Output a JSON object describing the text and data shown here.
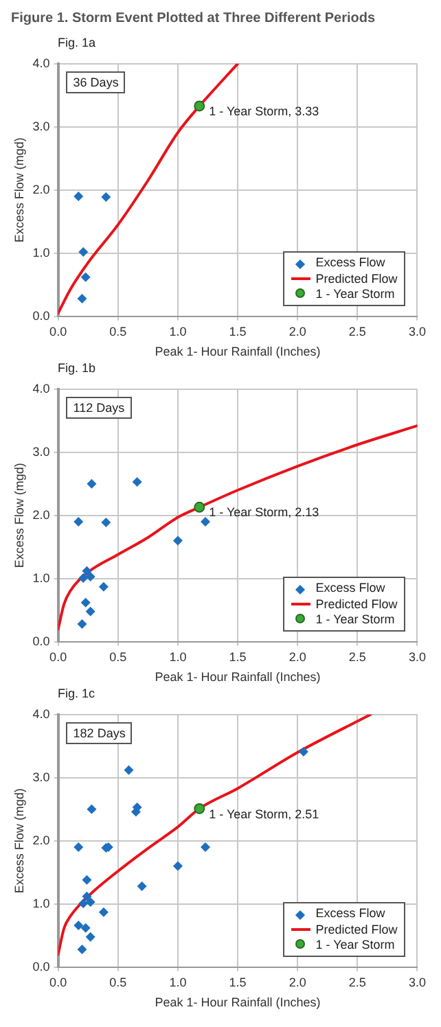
{
  "chart_data": [
    {
      "type": "scatter",
      "title": "Figure 1. Storm Event Plotted at Three Different Periods",
      "subtitle": "Fig. 1a",
      "xlabel": "Peak 1- Hour Rainfall (Inches)",
      "ylabel": "Excess Flow (mgd)",
      "xlim": [
        0,
        3
      ],
      "ylim": [
        0,
        4
      ],
      "xticks": [
        {
          "value": 0,
          "label": "0.0"
        },
        {
          "value": 0.5,
          "label": "0.5"
        },
        {
          "value": 1,
          "label": "1.0"
        },
        {
          "value": 1.5,
          "label": "1.5"
        },
        {
          "value": 2,
          "label": "2.0"
        },
        {
          "value": 2.5,
          "label": "2.5"
        },
        {
          "value": 3,
          "label": "3.0"
        }
      ],
      "yticks": [
        {
          "value": 0,
          "label": "0.0"
        },
        {
          "value": 1,
          "label": "1.0"
        },
        {
          "value": 2,
          "label": "2.0"
        },
        {
          "value": 3,
          "label": "3.0"
        },
        {
          "value": 4,
          "label": "4.0"
        }
      ],
      "grid": true,
      "legend": "bottom right",
      "annotations": [
        "36 Days"
      ],
      "series": [
        {
          "name": "Excess Flow",
          "type": "scatter",
          "marker": "diamond",
          "color": "#1f6fbf",
          "x": [
            0.17,
            0.4,
            0.21,
            0.23,
            0.2
          ],
          "values": [
            1.9,
            1.89,
            1.02,
            0.62,
            0.28
          ]
        },
        {
          "name": "Predicted Flow",
          "type": "line",
          "marker": "none",
          "color": "#e8141b",
          "x": [
            0,
            0.1,
            0.25,
            0.5,
            0.75,
            1,
            1.18,
            1.25,
            1.5
          ],
          "values": [
            0.05,
            0.42,
            0.85,
            1.45,
            2.15,
            2.91,
            3.33,
            3.48,
            4
          ]
        },
        {
          "name": "1 - Year Storm",
          "type": "scatter",
          "marker": "circle",
          "color": "#3aaa35",
          "x": [
            1.18
          ],
          "values": [
            3.33
          ],
          "value_labels": [
            "1 - Year Storm, 3.33"
          ]
        }
      ]
    },
    {
      "type": "scatter",
      "title": "Fig. 1b",
      "xlabel": "Peak 1- Hour Rainfall (Inches)",
      "ylabel": "Excess Flow (mgd)",
      "xlim": [
        0,
        3
      ],
      "ylim": [
        0,
        4
      ],
      "xticks": [
        {
          "value": 0,
          "label": "0.0"
        },
        {
          "value": 0.5,
          "label": "0.5"
        },
        {
          "value": 1,
          "label": "1.0"
        },
        {
          "value": 1.5,
          "label": "1.5"
        },
        {
          "value": 2,
          "label": "2.0"
        },
        {
          "value": 2.5,
          "label": "2.5"
        },
        {
          "value": 3,
          "label": "3.0"
        }
      ],
      "yticks": [
        {
          "value": 0,
          "label": "0.0"
        },
        {
          "value": 1,
          "label": "1.0"
        },
        {
          "value": 2,
          "label": "2.0"
        },
        {
          "value": 3,
          "label": "3.0"
        },
        {
          "value": 4,
          "label": "4.0"
        }
      ],
      "grid": true,
      "legend": "bottom right",
      "annotations": [
        "112 Days"
      ],
      "series": [
        {
          "name": "Excess Flow",
          "type": "scatter",
          "marker": "diamond",
          "color": "#1f6fbf",
          "x": [
            0.17,
            0.28,
            0.66,
            0.4,
            1.0,
            1.23,
            0.24,
            0.21,
            0.27,
            0.38,
            0.23,
            0.27,
            0.2
          ],
          "values": [
            1.9,
            2.5,
            2.53,
            1.89,
            1.6,
            1.9,
            1.12,
            1.01,
            1.03,
            0.87,
            0.62,
            0.48,
            0.28
          ]
        },
        {
          "name": "Predicted Flow",
          "type": "line",
          "marker": "none",
          "color": "#e8141b",
          "x": [
            0,
            0.05,
            0.1,
            0.25,
            0.5,
            0.75,
            1,
            1.18,
            1.5,
            2,
            2.5,
            3
          ],
          "values": [
            0.2,
            0.6,
            0.8,
            1.1,
            1.38,
            1.65,
            1.97,
            2.13,
            2.4,
            2.78,
            3.12,
            3.42
          ]
        },
        {
          "name": "1 - Year Storm",
          "type": "scatter",
          "marker": "circle",
          "color": "#3aaa35",
          "x": [
            1.18
          ],
          "values": [
            2.13
          ],
          "value_labels": [
            "1 - Year Storm, 2.13"
          ]
        }
      ]
    },
    {
      "type": "scatter",
      "title": "Fig. 1c",
      "xlabel": "Peak 1- Hour Rainfall (Inches)",
      "ylabel": "Excess Flow (mgd)",
      "xlim": [
        0,
        3
      ],
      "ylim": [
        0,
        4
      ],
      "xticks": [
        {
          "value": 0,
          "label": "0.0"
        },
        {
          "value": 0.5,
          "label": "0.5"
        },
        {
          "value": 1,
          "label": "1.0"
        },
        {
          "value": 1.5,
          "label": "1.5"
        },
        {
          "value": 2,
          "label": "2.0"
        },
        {
          "value": 2.5,
          "label": "2.5"
        },
        {
          "value": 3,
          "label": "3.0"
        }
      ],
      "yticks": [
        {
          "value": 0,
          "label": "0.0"
        },
        {
          "value": 1,
          "label": "1.0"
        },
        {
          "value": 2,
          "label": "2.0"
        },
        {
          "value": 3,
          "label": "3.0"
        },
        {
          "value": 4,
          "label": "4.0"
        }
      ],
      "grid": true,
      "legend": "bottom right",
      "annotations": [
        "182 Days"
      ],
      "series": [
        {
          "name": "Excess Flow",
          "type": "scatter",
          "marker": "diamond",
          "color": "#1f6fbf",
          "x": [
            0.17,
            0.28,
            0.59,
            0.65,
            0.66,
            0.4,
            0.42,
            1.0,
            1.23,
            0.24,
            0.7,
            0.24,
            0.21,
            0.27,
            0.38,
            0.17,
            0.23,
            0.27,
            0.2,
            2.05
          ],
          "values": [
            1.9,
            2.5,
            3.12,
            2.46,
            2.53,
            1.89,
            1.9,
            1.6,
            1.9,
            1.38,
            1.28,
            1.12,
            1.01,
            1.03,
            0.87,
            0.66,
            0.62,
            0.48,
            0.28,
            3.41
          ]
        },
        {
          "name": "Predicted Flow",
          "type": "line",
          "marker": "none",
          "color": "#e8141b",
          "x": [
            0,
            0.05,
            0.1,
            0.25,
            0.5,
            0.75,
            1,
            1.18,
            1.5,
            2,
            2.61
          ],
          "values": [
            0.2,
            0.62,
            0.8,
            1.12,
            1.52,
            1.88,
            2.22,
            2.51,
            2.83,
            3.4,
            4
          ]
        },
        {
          "name": "1 - Year Storm",
          "type": "scatter",
          "marker": "circle",
          "color": "#3aaa35",
          "x": [
            1.18
          ],
          "values": [
            2.51
          ],
          "value_labels": [
            "1 - Year Storm, 2.51"
          ]
        }
      ]
    }
  ]
}
